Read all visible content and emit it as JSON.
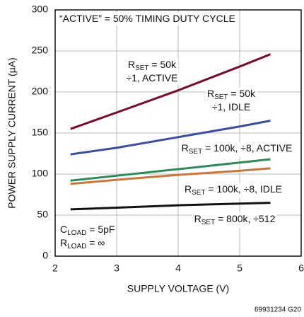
{
  "chart_data": {
    "type": "line",
    "x_label": "SUPPLY VOLTAGE (V)",
    "y_label": "POWER SUPPLY CURRENT (µA)",
    "xlim": [
      2,
      6
    ],
    "xticks": [
      2,
      3,
      4,
      5,
      6
    ],
    "ylim": [
      0,
      300
    ],
    "yticks": [
      0,
      50,
      100,
      150,
      200,
      250,
      300
    ],
    "grid": true,
    "x": [
      2.25,
      3,
      4,
      5,
      5.5
    ],
    "series": [
      {
        "color": "#7a0a2e",
        "values": [
          155,
          175,
          202,
          231,
          246
        ]
      },
      {
        "color": "#3a4fa0",
        "values": [
          124,
          132,
          145,
          158,
          165
        ]
      },
      {
        "color": "#2e8a5a",
        "values": [
          92,
          98,
          106,
          114,
          118
        ]
      },
      {
        "color": "#c8783a",
        "values": [
          88,
          93,
          99,
          104,
          107
        ]
      },
      {
        "color": "#111111",
        "values": [
          57,
          59,
          62,
          64,
          65
        ]
      }
    ],
    "annotations": [
      {
        "lines": [
          [
            "“ACTIVE” = 50% TIMING DUTY CYCLE"
          ]
        ]
      },
      {
        "lines": [
          [
            "R",
            "SET",
            " = 50k"
          ],
          [
            "÷1, ACTIVE"
          ]
        ]
      },
      {
        "lines": [
          [
            "R",
            "SET",
            " = 50k"
          ],
          [
            "÷1, IDLE"
          ]
        ]
      },
      {
        "lines": [
          [
            "R",
            "SET",
            " = 100k, ÷8, ACTIVE"
          ]
        ]
      },
      {
        "lines": [
          [
            "R",
            "SET",
            " = 100k, ÷8, IDLE"
          ]
        ]
      },
      {
        "lines": [
          [
            "R",
            "SET",
            " = 800k, ÷512"
          ]
        ]
      },
      {
        "lines": [
          [
            "C",
            "LOAD",
            " = 5pF"
          ],
          [
            "R",
            "LOAD",
            " = ∞"
          ]
        ]
      }
    ],
    "footer": "69931234 G20"
  }
}
